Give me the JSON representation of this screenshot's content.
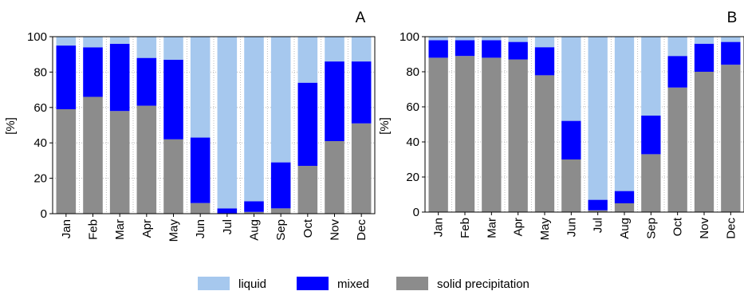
{
  "colors": {
    "liquid": "#a6c8ee",
    "mixed": "#0000ff",
    "solid": "#8c8c8c",
    "grid": "#a9a9a9",
    "axis": "#000000"
  },
  "legend": [
    {
      "key": "liquid",
      "label": "liquid"
    },
    {
      "key": "mixed",
      "label": "mixed"
    },
    {
      "key": "solid",
      "label": "solid precipitation"
    }
  ],
  "chart_data": [
    {
      "type": "bar",
      "stacked": true,
      "panel_label": "A",
      "ylabel": "[%]",
      "ylim": [
        0,
        100
      ],
      "yticks": [
        "0",
        "20",
        "40",
        "60",
        "80",
        "100"
      ],
      "grid": true,
      "categories": [
        "Jan",
        "Feb",
        "Mar",
        "Apr",
        "May",
        "Jun",
        "Jul",
        "Aug",
        "Sep",
        "Oct",
        "Nov",
        "Dec"
      ],
      "series": [
        {
          "name": "solid precipitation",
          "key": "solid",
          "values": [
            59,
            66,
            58,
            61,
            42,
            6,
            0,
            1,
            3,
            27,
            41,
            51
          ]
        },
        {
          "name": "mixed",
          "key": "mixed",
          "values": [
            36,
            28,
            38,
            27,
            45,
            37,
            3,
            6,
            26,
            47,
            45,
            35
          ]
        },
        {
          "name": "liquid",
          "key": "liquid",
          "values": [
            5,
            6,
            4,
            12,
            13,
            57,
            97,
            93,
            71,
            26,
            14,
            14
          ]
        }
      ]
    },
    {
      "type": "bar",
      "stacked": true,
      "panel_label": "B",
      "ylabel": "[%]",
      "ylim": [
        0,
        100
      ],
      "yticks": [
        "0",
        "20",
        "40",
        "60",
        "80",
        "100"
      ],
      "grid": true,
      "categories": [
        "Jan",
        "Feb",
        "Mar",
        "Apr",
        "May",
        "Jun",
        "Jul",
        "Aug",
        "Sep",
        "Oct",
        "Nov",
        "Dec"
      ],
      "series": [
        {
          "name": "solid precipitation",
          "key": "solid",
          "values": [
            88,
            89,
            88,
            87,
            78,
            30,
            1,
            5,
            33,
            71,
            80,
            84
          ]
        },
        {
          "name": "mixed",
          "key": "mixed",
          "values": [
            10,
            9,
            10,
            10,
            16,
            22,
            6,
            7,
            22,
            18,
            16,
            13
          ]
        },
        {
          "name": "liquid",
          "key": "liquid",
          "values": [
            2,
            2,
            2,
            3,
            6,
            48,
            93,
            88,
            45,
            11,
            4,
            3
          ]
        }
      ]
    }
  ]
}
